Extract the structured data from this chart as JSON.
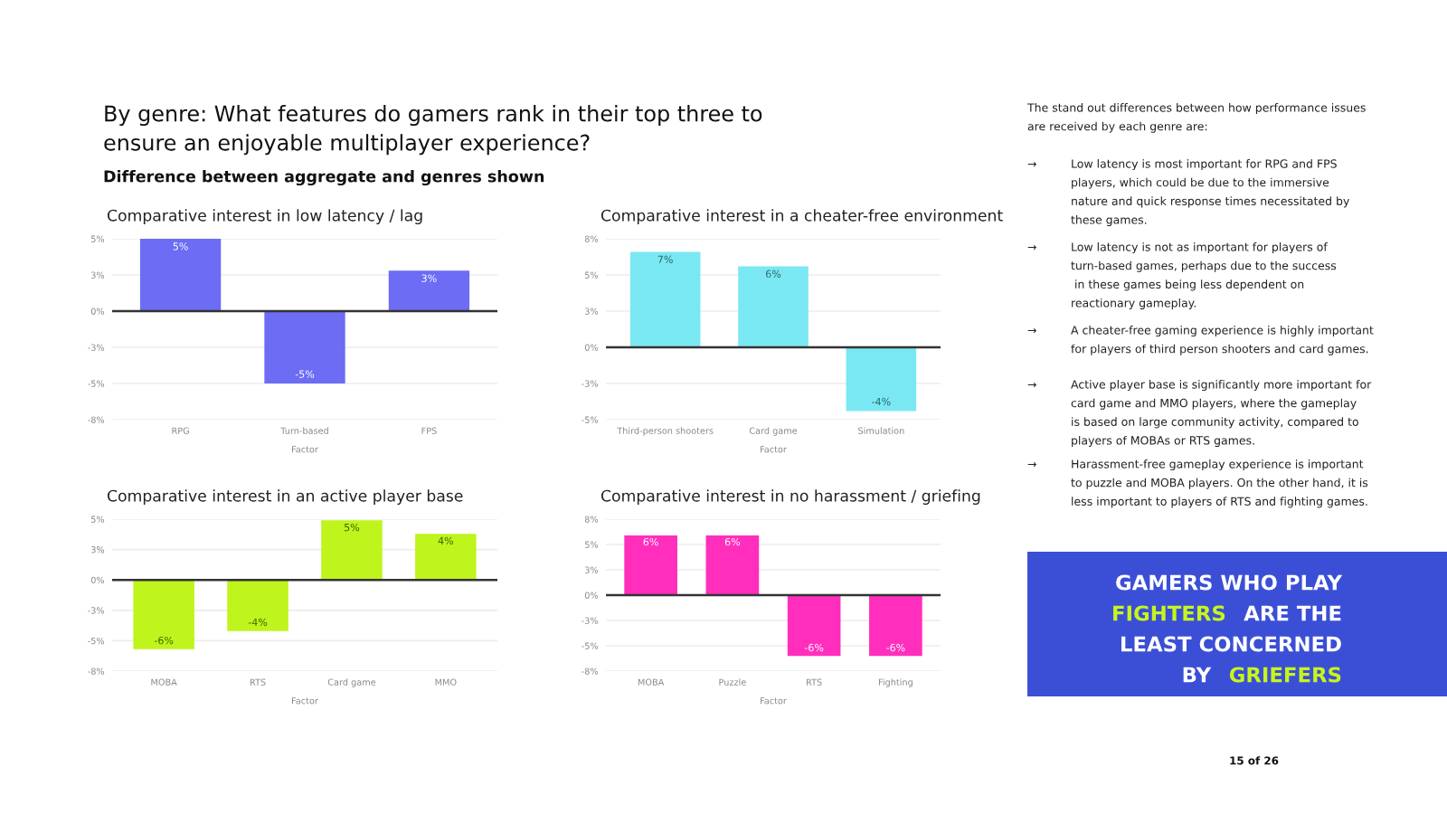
{
  "chart_data": [
    {
      "type": "other",
      "title": "By genre: What features do gamers rank in their top three to\nensure an enjoyable multiplayer experience?",
      "subtitle": "Difference between aggregate and genres shown"
    },
    {
      "type": "bar",
      "title": "Comparative interest in low latency / lag",
      "xlabel": "Factor",
      "categories": [
        "RPG",
        "Turn-based",
        "FPS"
      ],
      "series": [
        {
          "color": "#6c6cf5",
          "values": [
            5,
            -5,
            2.8
          ]
        }
      ],
      "value_labels": [
        "5%",
        "-5%",
        "3%"
      ],
      "ylim": [
        -7.5,
        5
      ],
      "yticks": [
        {
          "value": 5,
          "label": "5%"
        },
        {
          "value": 2.5,
          "label": "3%"
        },
        {
          "value": 0,
          "label": "0%"
        },
        {
          "value": -2.5,
          "label": "-3%"
        },
        {
          "value": -5,
          "label": "-5%"
        },
        {
          "value": -7.5,
          "label": "-8%"
        }
      ],
      "grid": "y"
    },
    {
      "type": "bar",
      "title": "Comparative interest in a cheater-free environment",
      "xlabel": "Factor",
      "categories": [
        "Third-person shooters",
        "Card game",
        "Simulation"
      ],
      "series": [
        {
          "color": "#7ae8f2",
          "values": [
            6.6,
            5.6,
            -4.4
          ]
        }
      ],
      "value_labels": [
        "7%",
        "6%",
        "-4%"
      ],
      "ylim": [
        -5,
        7.5
      ],
      "yticks": [
        {
          "value": 7.5,
          "label": "8%"
        },
        {
          "value": 5,
          "label": "5%"
        },
        {
          "value": 2.5,
          "label": "3%"
        },
        {
          "value": 0,
          "label": "0%"
        },
        {
          "value": -2.5,
          "label": "-3%"
        },
        {
          "value": -5,
          "label": "-5%"
        }
      ],
      "grid": "y"
    },
    {
      "type": "bar",
      "title": "Comparative interest in an active player base",
      "xlabel": "Factor",
      "categories": [
        "MOBA",
        "RTS",
        "Card game",
        "MMO"
      ],
      "series": [
        {
          "color": "#bff51c",
          "values": [
            -5.7,
            -4.2,
            4.9,
            3.8
          ]
        }
      ],
      "value_labels": [
        "-6%",
        "-4%",
        "5%",
        "4%"
      ],
      "ylim": [
        -7.5,
        5
      ],
      "yticks": [
        {
          "value": 5,
          "label": "5%"
        },
        {
          "value": 2.5,
          "label": "3%"
        },
        {
          "value": 0,
          "label": "0%"
        },
        {
          "value": -2.5,
          "label": "-3%"
        },
        {
          "value": -5,
          "label": "-5%"
        },
        {
          "value": -7.5,
          "label": "-8%"
        }
      ],
      "grid": "y"
    },
    {
      "type": "bar",
      "title": "Comparative interest in no harassment / griefing",
      "xlabel": "Factor",
      "categories": [
        "MOBA",
        "Puzzle",
        "RTS",
        "Fighting"
      ],
      "series": [
        {
          "color": "#ff2ebd",
          "values": [
            5.9,
            5.9,
            -6.0,
            -6.0
          ]
        }
      ],
      "value_labels": [
        "6%",
        "6%",
        "-6%",
        "-6%"
      ],
      "ylim": [
        -7.5,
        7.5
      ],
      "yticks": [
        {
          "value": 7.5,
          "label": "8%"
        },
        {
          "value": 5,
          "label": "5%"
        },
        {
          "value": 2.5,
          "label": "3%"
        },
        {
          "value": 0,
          "label": "0%"
        },
        {
          "value": -2.5,
          "label": "-3%"
        },
        {
          "value": -5,
          "label": "-5%"
        },
        {
          "value": -7.5,
          "label": "-8%"
        }
      ],
      "grid": "y"
    },
    {
      "type": "other",
      "title": "The stand out differences between how performance issues\nare received by each genre are:",
      "annotations": [
        "→",
        "Low latency is most important for RPG and FPS\nplayers, which could be due to the immersive\nnature and quick response times necessitated by\nthese games.",
        "→",
        "Low latency is not as important for players of\nturn-based games, perhaps due to the success\n in these games being less dependent on\nreactionary gameplay.",
        "→",
        "A cheater-free gaming experience is highly important\nfor players of third person shooters and card games.",
        "→",
        "Active player base is significantly more important for\ncard game and MMO players, where the gameplay\nis based on large community activity, compared to\nplayers of MOBAs or RTS games.",
        "→",
        "Harassment-free gameplay experience is important\nto puzzle and MOBA players. On the other hand, it is\nless important to players of RTS and fighting games."
      ]
    },
    {
      "type": "other",
      "annotations": [
        "GAMERS WHO PLAY",
        "FIGHTERS",
        "ARE THE",
        "LEAST CONCERNED",
        "BY",
        "GRIEFERS"
      ]
    },
    {
      "type": "other",
      "annotations": [
        "15 of 26"
      ]
    }
  ]
}
